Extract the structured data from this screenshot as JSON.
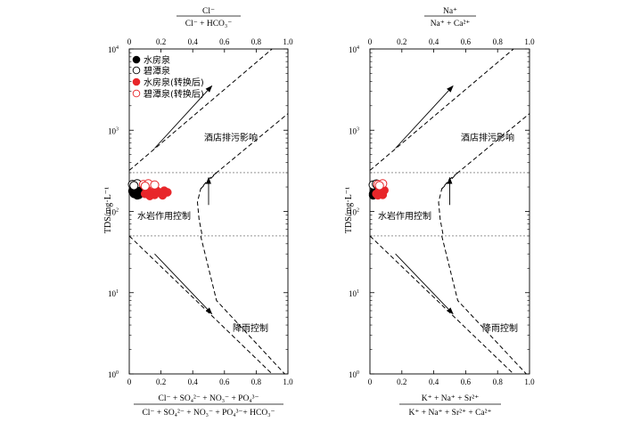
{
  "chart_data": [
    {
      "type": "scatter",
      "title": "",
      "top_label_numerator": "Cl⁻",
      "top_label_denominator": "Cl⁻ + HCO₃⁻",
      "bottom_label_numerator": "Cl⁻ + SO₄²⁻ + NO₃⁻ + PO₄³⁻",
      "bottom_label_denominator": "Cl⁻ + SO₄²⁻ + NO₃⁻ + PO₄³⁻+ HCO₃⁻",
      "ylabel": "TDS/mg·L⁻¹",
      "xlim": [
        0,
        1
      ],
      "ylim_log10": [
        0,
        4
      ],
      "log_y": true,
      "bottom_ticks": [
        "0",
        "0.2",
        "0.4",
        "0.6",
        "0.8",
        "1.0"
      ],
      "top_ticks": [
        "0",
        "0.2",
        "0.4",
        "0.6",
        "0.8",
        "1.0"
      ],
      "y_ticks": [
        {
          "base": "10",
          "exp": "0"
        },
        {
          "base": "10",
          "exp": "1"
        },
        {
          "base": "10",
          "exp": "2"
        },
        {
          "base": "10",
          "exp": "3"
        },
        {
          "base": "10",
          "exp": "4"
        }
      ],
      "legend": [
        {
          "label": "水房泉",
          "marker": "filled-black"
        },
        {
          "label": "碧潭泉",
          "marker": "open-black"
        },
        {
          "label": "水房泉(转换后)",
          "marker": "filled-red"
        },
        {
          "label": "碧潭泉(转换后)",
          "marker": "open-red"
        }
      ],
      "annotations": [
        "酒店排污影响",
        "水岩作用控制",
        "降雨控制"
      ],
      "hlines": [
        300,
        50
      ],
      "series": [
        {
          "name": "水房泉",
          "style": "filled-black",
          "points": [
            [
              0.03,
              165
            ],
            [
              0.05,
              170
            ],
            [
              0.07,
              175
            ],
            [
              0.04,
              180
            ],
            [
              0.06,
              160
            ],
            [
              0.08,
              172
            ],
            [
              0.02,
              178
            ],
            [
              0.05,
              158
            ],
            [
              0.09,
              168
            ],
            [
              0.06,
              185
            ]
          ]
        },
        {
          "name": "碧潭泉",
          "style": "open-black",
          "points": [
            [
              0.02,
              215
            ],
            [
              0.05,
              220
            ],
            [
              0.03,
              208
            ]
          ]
        },
        {
          "name": "水房泉(转换后)",
          "style": "filled-red",
          "points": [
            [
              0.1,
              165
            ],
            [
              0.14,
              170
            ],
            [
              0.18,
              175
            ],
            [
              0.22,
              180
            ],
            [
              0.12,
              178
            ],
            [
              0.16,
              160
            ],
            [
              0.2,
              168
            ],
            [
              0.24,
              172
            ],
            [
              0.11,
              185
            ],
            [
              0.17,
              182
            ],
            [
              0.21,
              158
            ],
            [
              0.13,
              155
            ]
          ]
        },
        {
          "name": "碧潭泉(转换后)",
          "style": "open-red",
          "points": [
            [
              0.09,
              215
            ],
            [
              0.12,
              220
            ],
            [
              0.16,
              212
            ],
            [
              0.1,
              205
            ]
          ]
        }
      ]
    },
    {
      "type": "scatter",
      "title": "",
      "top_label_numerator": "Na⁺",
      "top_label_denominator": "Na⁺ + Ca²⁺",
      "bottom_label_numerator": "K⁺ + Na⁺ + Sr²⁺",
      "bottom_label_denominator": "K⁺ + Na⁺ + Sr²⁺ + Ca²⁺",
      "ylabel": "TDS/mg·L⁻¹",
      "xlim": [
        0,
        1
      ],
      "ylim_log10": [
        0,
        4
      ],
      "log_y": true,
      "bottom_ticks": [
        "0",
        "0.2",
        "0.4",
        "0.6",
        "0.8",
        "1.0"
      ],
      "top_ticks": [
        "0",
        "0.2",
        "0.4",
        "0.6",
        "0.8",
        "1.0"
      ],
      "y_ticks": [
        {
          "base": "10",
          "exp": "0"
        },
        {
          "base": "10",
          "exp": "1"
        },
        {
          "base": "10",
          "exp": "2"
        },
        {
          "base": "10",
          "exp": "3"
        },
        {
          "base": "10",
          "exp": "4"
        }
      ],
      "annotations": [
        "酒店排污影响",
        "水岩作用控制",
        "降雨控制"
      ],
      "hlines": [
        300,
        50
      ],
      "series": [
        {
          "name": "水房泉",
          "style": "filled-black",
          "points": [
            [
              0.02,
              165
            ],
            [
              0.03,
              172
            ],
            [
              0.04,
              178
            ],
            [
              0.02,
              158
            ],
            [
              0.05,
              168
            ],
            [
              0.03,
              185
            ],
            [
              0.04,
              162
            ]
          ]
        },
        {
          "name": "碧潭泉",
          "style": "open-black",
          "points": [
            [
              0.02,
              212
            ],
            [
              0.04,
              218
            ]
          ]
        },
        {
          "name": "水房泉(转换后)",
          "style": "filled-red",
          "points": [
            [
              0.04,
              165
            ],
            [
              0.06,
              172
            ],
            [
              0.08,
              178
            ],
            [
              0.05,
              158
            ],
            [
              0.07,
              168
            ],
            [
              0.09,
              182
            ],
            [
              0.06,
              185
            ],
            [
              0.08,
              160
            ]
          ]
        },
        {
          "name": "碧潭泉(转换后)",
          "style": "open-red",
          "points": [
            [
              0.05,
              215
            ],
            [
              0.08,
              220
            ],
            [
              0.06,
              208
            ]
          ]
        }
      ]
    }
  ]
}
